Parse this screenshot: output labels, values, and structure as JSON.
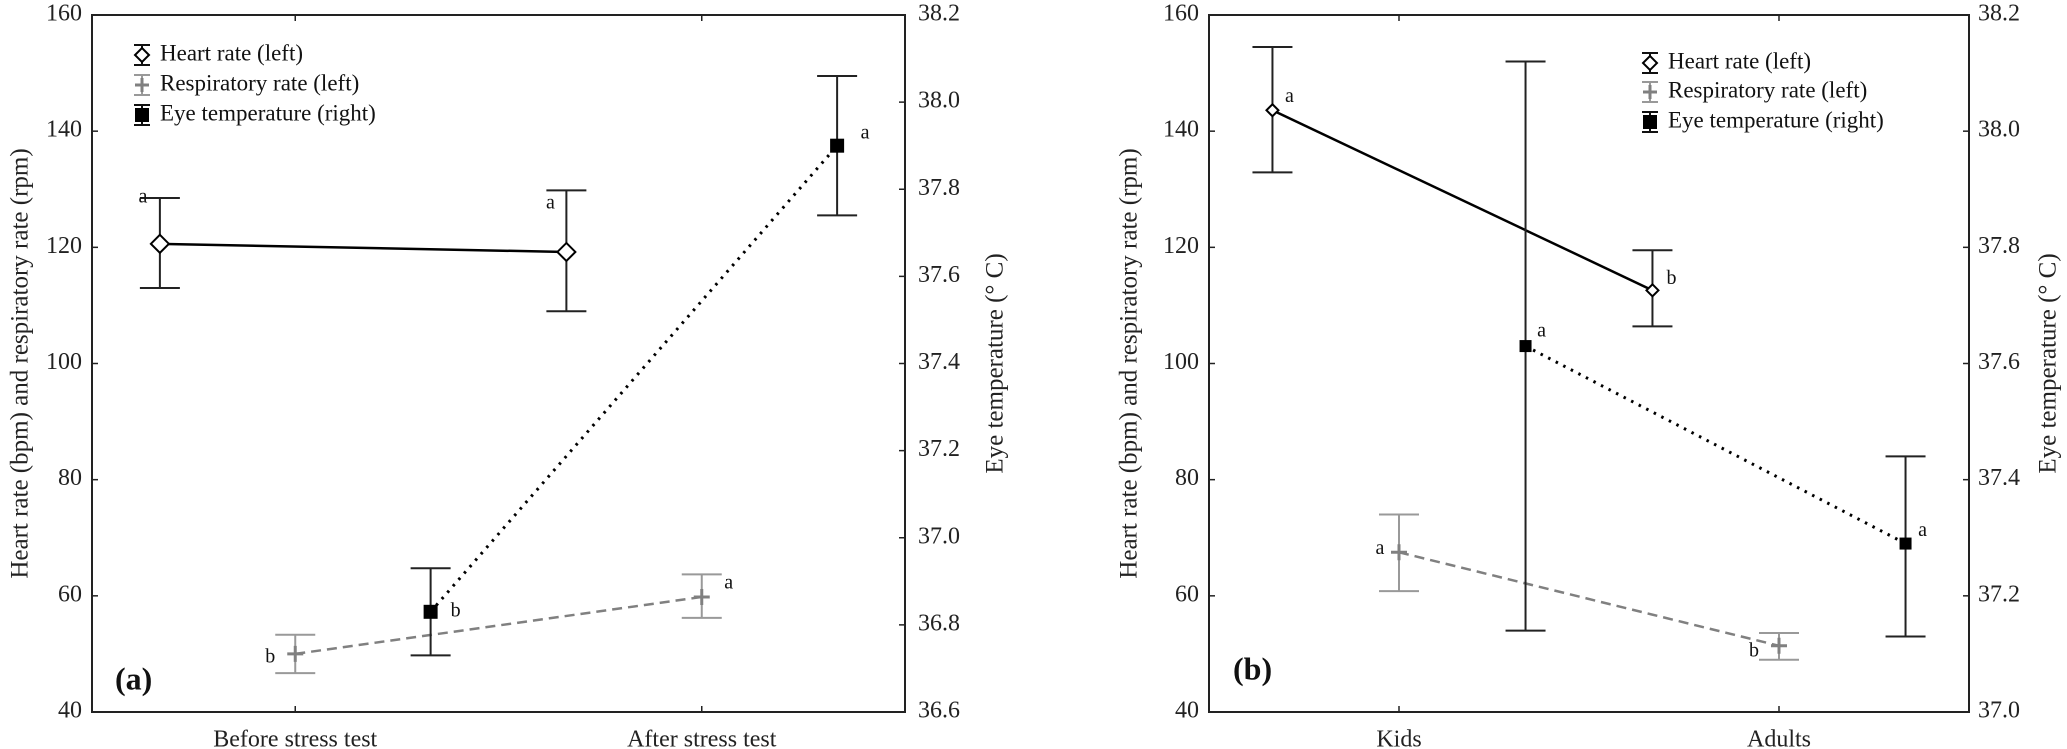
{
  "chart_data": [
    {
      "type": "line",
      "panel_label": "(a)",
      "categories": [
        "Before stress test",
        "After stress test"
      ],
      "ylabel_left": "Heart rate (bpm) and respiratory rate (rpm)",
      "ylabel_right": "Eye temperature (° C)",
      "ylim_left": [
        40,
        160
      ],
      "ylim_right": [
        36.6,
        38.2
      ],
      "yticks_left": [
        "40",
        "60",
        "80",
        "100",
        "120",
        "140",
        "160"
      ],
      "yticks_right": [
        "36.6",
        "36.8",
        "37.0",
        "37.2",
        "37.4",
        "37.6",
        "37.8",
        "38.0",
        "38.2"
      ],
      "legend_position": "top-left",
      "series": [
        {
          "name": "Heart rate (left)",
          "axis": "left",
          "values": [
            120.6,
            119.2
          ],
          "err_low": [
            113.0,
            109.0
          ],
          "err_high": [
            128.5,
            129.8
          ],
          "letters": [
            "a",
            "a"
          ],
          "color": "#000000"
        },
        {
          "name": "Respiratory rate (left)",
          "axis": "left",
          "values": [
            50.0,
            59.8
          ],
          "err_low": [
            46.7,
            56.2
          ],
          "err_high": [
            53.3,
            63.7
          ],
          "letters": [
            "b",
            "a"
          ],
          "color": "#808080"
        },
        {
          "name": "Eye temperature (right)",
          "axis": "right",
          "values": [
            36.83,
            37.9
          ],
          "err_low": [
            36.73,
            37.74
          ],
          "err_high": [
            36.93,
            38.06
          ],
          "letters": [
            "b",
            "a"
          ],
          "color": "#000000"
        }
      ]
    },
    {
      "type": "line",
      "panel_label": "(b)",
      "categories": [
        "Kids",
        "Adults"
      ],
      "ylabel_left": "Heart rate (bpm) and respiratory rate (rpm)",
      "ylabel_right": "Eye temperature (° C)",
      "ylim_left": [
        40,
        160
      ],
      "ylim_right": [
        37.0,
        38.2
      ],
      "yticks_left": [
        "40",
        "60",
        "80",
        "100",
        "120",
        "140",
        "160"
      ],
      "yticks_right": [
        "37.0",
        "37.2",
        "37.4",
        "37.6",
        "37.8",
        "38.0",
        "38.2"
      ],
      "legend_position": "top-right",
      "series": [
        {
          "name": "Heart rate (left)",
          "axis": "left",
          "values": [
            143.6,
            112.6
          ],
          "err_low": [
            132.9,
            106.4
          ],
          "err_high": [
            154.5,
            119.5
          ],
          "letters": [
            "a",
            "b"
          ],
          "color": "#000000"
        },
        {
          "name": "Respiratory rate (left)",
          "axis": "left",
          "values": [
            67.5,
            51.4
          ],
          "err_low": [
            60.8,
            49.0
          ],
          "err_high": [
            74.0,
            53.6
          ],
          "letters": [
            "a",
            "b"
          ],
          "color": "#808080"
        },
        {
          "name": "Eye temperature (right)",
          "axis": "right",
          "values": [
            37.63,
            37.29
          ],
          "err_low": [
            37.14,
            37.13
          ],
          "err_high": [
            38.12,
            37.44
          ],
          "letters": [
            "a",
            "a"
          ],
          "color": "#000000"
        }
      ]
    }
  ]
}
